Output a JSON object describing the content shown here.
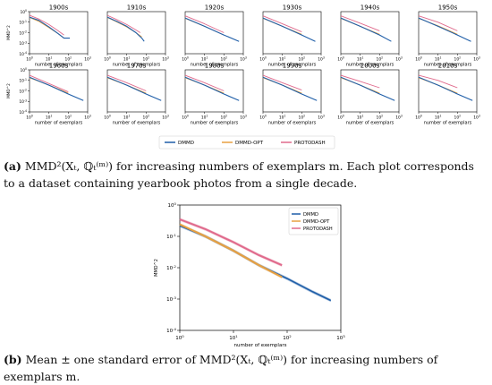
{
  "chart_data": {
    "top_panels": {
      "type": "line",
      "x_scale": "log",
      "y_scale": "log",
      "xlim": [
        1,
        1000
      ],
      "ylim": [
        0.0001,
        1
      ],
      "xlabel": "number of exemplars",
      "ylabel": "MMD^2",
      "x_tick_labels": [
        "10^0",
        "10^1",
        "10^2",
        "10^3"
      ],
      "y_tick_labels": [
        "10^-4",
        "10^-3",
        "10^-2",
        "10^-1",
        "10^0"
      ],
      "legend": [
        "DMMD",
        "DMMD-OPT",
        "PROTODASH"
      ],
      "legend_placement": "below panels",
      "panels": [
        {
          "title": "1900s",
          "dmmd": [
            [
              1,
              0.3
            ],
            [
              3,
              0.15
            ],
            [
              10,
              0.035
            ],
            [
              30,
              0.008
            ],
            [
              60,
              0.003
            ],
            [
              100,
              0.003
            ],
            [
              120,
              0.003
            ]
          ],
          "opt": [
            [
              1,
              0.28
            ],
            [
              3,
              0.12
            ],
            [
              10,
              0.03
            ],
            [
              30,
              0.008
            ],
            [
              60,
              0.003
            ]
          ],
          "proto": [
            [
              1,
              0.45
            ],
            [
              3,
              0.2
            ],
            [
              10,
              0.06
            ],
            [
              30,
              0.015
            ],
            [
              60,
              0.006
            ]
          ]
        },
        {
          "title": "1910s",
          "dmmd": [
            [
              1,
              0.3
            ],
            [
              3,
              0.12
            ],
            [
              10,
              0.04
            ],
            [
              30,
              0.01
            ],
            [
              60,
              0.003
            ],
            [
              80,
              0.0015
            ]
          ],
          "opt": [
            [
              1,
              0.28
            ],
            [
              3,
              0.11
            ],
            [
              10,
              0.035
            ],
            [
              30,
              0.01
            ],
            [
              60,
              0.004
            ]
          ],
          "proto": [
            [
              1,
              0.45
            ],
            [
              3,
              0.18
            ],
            [
              10,
              0.06
            ],
            [
              30,
              0.018
            ],
            [
              50,
              0.01
            ]
          ]
        },
        {
          "title": "1920s",
          "dmmd": [
            [
              1,
              0.25
            ],
            [
              10,
              0.04
            ],
            [
              100,
              0.006
            ],
            [
              600,
              0.0015
            ]
          ],
          "opt": [
            [
              1,
              0.23
            ],
            [
              10,
              0.04
            ],
            [
              100,
              0.006
            ]
          ],
          "proto": [
            [
              1,
              0.4
            ],
            [
              10,
              0.07
            ],
            [
              100,
              0.01
            ]
          ]
        },
        {
          "title": "1930s",
          "dmmd": [
            [
              1,
              0.25
            ],
            [
              10,
              0.04
            ],
            [
              100,
              0.006
            ],
            [
              500,
              0.0015
            ]
          ],
          "opt": [
            [
              1,
              0.23
            ],
            [
              10,
              0.04
            ],
            [
              100,
              0.007
            ]
          ],
          "proto": [
            [
              1,
              0.4
            ],
            [
              10,
              0.07
            ],
            [
              100,
              0.012
            ]
          ]
        },
        {
          "title": "1940s",
          "dmmd": [
            [
              1,
              0.25
            ],
            [
              10,
              0.04
            ],
            [
              100,
              0.006
            ],
            [
              400,
              0.0015
            ]
          ],
          "opt": [
            [
              1,
              0.23
            ],
            [
              10,
              0.04
            ],
            [
              100,
              0.007
            ]
          ],
          "proto": [
            [
              1,
              0.4
            ],
            [
              10,
              0.08
            ],
            [
              100,
              0.015
            ]
          ]
        },
        {
          "title": "1950s",
          "dmmd": [
            [
              1,
              0.25
            ],
            [
              10,
              0.04
            ],
            [
              100,
              0.006
            ],
            [
              500,
              0.0015
            ]
          ],
          "opt": [
            [
              1,
              0.23
            ],
            [
              10,
              0.045
            ],
            [
              100,
              0.007
            ]
          ],
          "proto": [
            [
              1,
              0.4
            ],
            [
              10,
              0.1
            ],
            [
              100,
              0.015
            ]
          ]
        },
        {
          "title": "1960s",
          "dmmd": [
            [
              1,
              0.2
            ],
            [
              10,
              0.035
            ],
            [
              100,
              0.005
            ],
            [
              600,
              0.0012
            ]
          ],
          "opt": [
            [
              1,
              0.18
            ],
            [
              10,
              0.035
            ],
            [
              100,
              0.006
            ]
          ],
          "proto": [
            [
              1,
              0.3
            ],
            [
              10,
              0.05
            ],
            [
              100,
              0.008
            ]
          ]
        },
        {
          "title": "1970s",
          "dmmd": [
            [
              1,
              0.2
            ],
            [
              10,
              0.035
            ],
            [
              100,
              0.005
            ],
            [
              600,
              0.0012
            ]
          ],
          "opt": [
            [
              1,
              0.18
            ],
            [
              10,
              0.035
            ],
            [
              100,
              0.006
            ]
          ],
          "proto": [
            [
              1,
              0.3
            ],
            [
              10,
              0.06
            ],
            [
              100,
              0.01
            ]
          ]
        },
        {
          "title": "1980s",
          "dmmd": [
            [
              1,
              0.2
            ],
            [
              10,
              0.035
            ],
            [
              100,
              0.005
            ],
            [
              600,
              0.0012
            ]
          ],
          "opt": [
            [
              1,
              0.18
            ],
            [
              10,
              0.035
            ],
            [
              100,
              0.006
            ]
          ],
          "proto": [
            [
              1,
              0.3
            ],
            [
              10,
              0.06
            ],
            [
              100,
              0.01
            ]
          ]
        },
        {
          "title": "1990s",
          "dmmd": [
            [
              1,
              0.2
            ],
            [
              10,
              0.035
            ],
            [
              100,
              0.005
            ],
            [
              600,
              0.0012
            ]
          ],
          "opt": [
            [
              1,
              0.18
            ],
            [
              10,
              0.035
            ],
            [
              100,
              0.006
            ]
          ],
          "proto": [
            [
              1,
              0.3
            ],
            [
              10,
              0.06
            ],
            [
              100,
              0.012
            ]
          ]
        },
        {
          "title": "2000s",
          "dmmd": [
            [
              1,
              0.2
            ],
            [
              10,
              0.035
            ],
            [
              100,
              0.005
            ],
            [
              600,
              0.0012
            ]
          ],
          "opt": [
            [
              1,
              0.18
            ],
            [
              10,
              0.035
            ],
            [
              100,
              0.006
            ]
          ],
          "proto": [
            [
              1,
              0.3
            ],
            [
              10,
              0.08
            ],
            [
              100,
              0.02
            ]
          ]
        },
        {
          "title": "2010s",
          "dmmd": [
            [
              1,
              0.2
            ],
            [
              10,
              0.035
            ],
            [
              100,
              0.005
            ],
            [
              600,
              0.0012
            ]
          ],
          "opt": [
            [
              1,
              0.18
            ],
            [
              10,
              0.035
            ],
            [
              100,
              0.006
            ]
          ],
          "proto": [
            [
              1,
              0.3
            ],
            [
              10,
              0.1
            ],
            [
              100,
              0.02
            ]
          ]
        }
      ]
    },
    "bottom_panel": {
      "type": "line",
      "x_scale": "log",
      "y_scale": "log",
      "xlim": [
        1,
        1000
      ],
      "ylim": [
        0.0001,
        1
      ],
      "xlabel": "number of exemplars",
      "ylabel": "MMD^2",
      "x_tick_labels": [
        "10^0",
        "10^1",
        "10^2",
        "10^3"
      ],
      "y_tick_labels": [
        "10^-4",
        "10^-3",
        "10^-2",
        "10^-1",
        "10^0"
      ],
      "legend_placement": "top-right",
      "series": [
        {
          "name": "DMMD",
          "color": "#1f5ea8",
          "points": [
            [
              1,
              0.22
            ],
            [
              3,
              0.1
            ],
            [
              10,
              0.035
            ],
            [
              30,
              0.012
            ],
            [
              100,
              0.0045
            ],
            [
              300,
              0.0017
            ],
            [
              650,
              0.0009
            ]
          ]
        },
        {
          "name": "DMMD-OPT",
          "color": "#e8a040",
          "points": [
            [
              1,
              0.24
            ],
            [
              3,
              0.1
            ],
            [
              10,
              0.035
            ],
            [
              30,
              0.012
            ],
            [
              80,
              0.005
            ]
          ]
        },
        {
          "name": "PROTODASH",
          "color": "#e06a8c",
          "points": [
            [
              1,
              0.35
            ],
            [
              3,
              0.17
            ],
            [
              10,
              0.065
            ],
            [
              30,
              0.025
            ],
            [
              80,
              0.012
            ]
          ]
        }
      ]
    }
  },
  "colors": {
    "dmmd": "#1f5ea8",
    "opt": "#e8a040",
    "proto": "#e06a8c"
  },
  "caption_a": {
    "tag": "(a)",
    "text": "MMD²(Xₜ, ℚₜ⁽ᵐ⁾) for increasing numbers of exemplars m. Each plot corresponds to a dataset containing yearbook photos from a single decade."
  },
  "caption_b": {
    "tag": "(b)",
    "text": "Mean ± one standard error of MMD²(Xₜ, ℚₜ⁽ᵐ⁾) for increasing numbers of exemplars m."
  }
}
